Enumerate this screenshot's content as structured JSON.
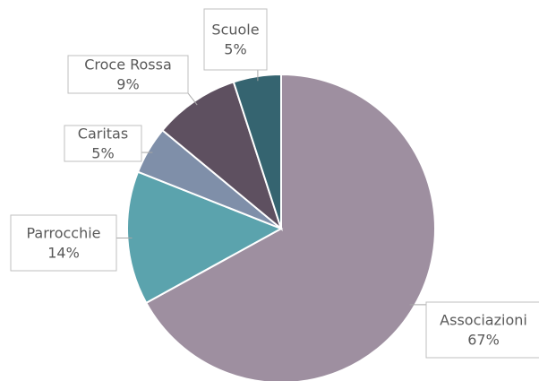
{
  "chart_data": {
    "type": "pie",
    "categories": [
      "Associazioni",
      "Parrocchie",
      "Caritas",
      "Croce Rossa",
      "Scuole"
    ],
    "values": [
      67,
      14,
      5,
      9,
      5
    ],
    "value_labels": [
      "67%",
      "14%",
      "5%",
      "9%",
      "5%"
    ],
    "colors": [
      "#9e8fa0",
      "#5ba3ad",
      "#7f8fa9",
      "#5e5060",
      "#356470"
    ]
  }
}
